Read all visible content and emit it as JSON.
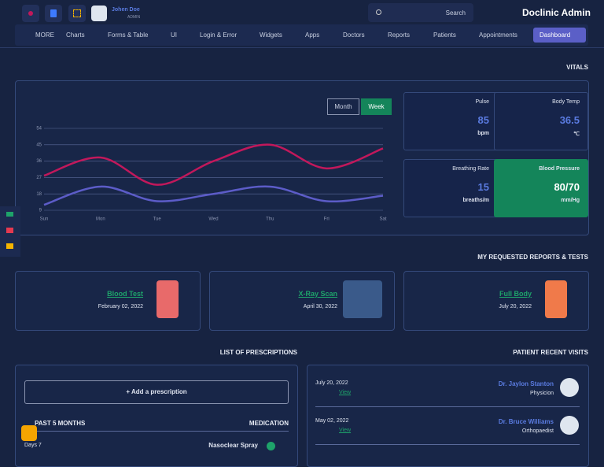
{
  "header": {
    "user_name": "Johen Doe",
    "user_role": "ADMIN",
    "search": "Search",
    "brand": "Doclinic Admin"
  },
  "nav": [
    "MORE",
    "Charts",
    "Forms & Table",
    "UI",
    "Login & Error",
    "Widgets",
    "Apps",
    "Doctors",
    "Reports",
    "Patients",
    "Appointments",
    "Dashboard"
  ],
  "vitals": {
    "heading": "VITALS",
    "toggle": [
      "Month",
      "Week"
    ],
    "tiles": [
      {
        "label": "Pulse",
        "value": "85",
        "unit": "bpm"
      },
      {
        "label": "Body Temp",
        "value": "36.5",
        "unit": "℃"
      },
      {
        "label": "Breathing Rate",
        "value": "15",
        "unit": "breaths/m"
      },
      {
        "label": "Blood Pressure",
        "value": "80/70",
        "unit": "mm/Hg"
      }
    ]
  },
  "chart_data": {
    "type": "line",
    "categories": [
      "Sun",
      "Mon",
      "Tue",
      "Wed",
      "Thu",
      "Fri",
      "Sat"
    ],
    "series": [
      {
        "color": "#c2185b",
        "values": [
          28,
          38,
          23,
          36,
          45,
          32,
          43
        ]
      },
      {
        "color": "#5c5cc8",
        "values": [
          12,
          22,
          14,
          18,
          22,
          14,
          17
        ]
      }
    ],
    "ylim": [
      9,
      54
    ],
    "yticks": [
      9,
      18,
      27,
      36,
      45,
      54
    ],
    "grid": true
  },
  "reports": {
    "heading": "MY REQUESTED REPORTS & TESTS",
    "items": [
      {
        "title": "Blood Test",
        "date": "February 02, 2022"
      },
      {
        "title": "X-Ray Scan",
        "date": "April 30, 2022"
      },
      {
        "title": "Full Body",
        "date": "July 20, 2022"
      }
    ]
  },
  "prescriptions": {
    "heading": "LIST OF PRESCRIPTIONS",
    "add": "+ Add a prescription",
    "period": "PAST 5 MONTHS",
    "column": "MEDICATION",
    "rows": [
      {
        "days": "Days 7",
        "medication": "Nasoclear Spray"
      }
    ]
  },
  "visits": {
    "heading": "PATIENT RECENT VISITS",
    "items": [
      {
        "date": "July 20, 2022",
        "link": "View",
        "doctor": "Dr. Jaylon Stanton",
        "specialty": "Physicion"
      },
      {
        "date": "May 02, 2022",
        "link": "View",
        "doctor": "Dr. Bruce Williams",
        "specialty": "Orthopaedist"
      }
    ]
  }
}
